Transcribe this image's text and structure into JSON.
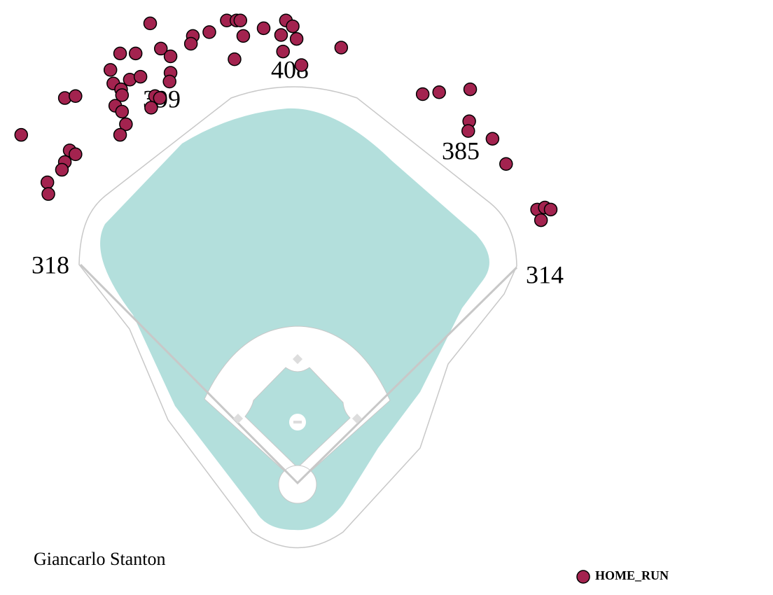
{
  "chart_data": {
    "type": "scatter",
    "title": "Giancarlo Stanton",
    "fence_distances": [
      318,
      399,
      408,
      385,
      314
    ],
    "xlim": [
      -300,
      300
    ],
    "ylim": [
      -60,
      500
    ],
    "series": [
      {
        "name": "HOME_RUN",
        "color": "#a3234f",
        "x": [
          -152,
          -108,
          -91,
          -110,
          -73,
          -63,
          -59,
          -56,
          -35,
          -12,
          -5,
          -17,
          -1,
          -15,
          -65,
          4,
          45,
          -183,
          -167,
          -141,
          -131,
          -193,
          -173,
          -162,
          -131,
          -132,
          -190,
          -182,
          -181,
          -147,
          -142,
          -240,
          -229,
          -188,
          -181,
          -151,
          -177,
          -183,
          -285,
          -235,
          -229,
          -240,
          -243,
          -258,
          -257,
          129,
          146,
          178,
          177,
          176,
          201,
          215,
          247,
          255,
          261,
          251
        ],
        "y": [
          474,
          461,
          465,
          453,
          477,
          477,
          477,
          461,
          469,
          477,
          471,
          462,
          458,
          445,
          437,
          431,
          449,
          443,
          443,
          448,
          440,
          426,
          416,
          419,
          423,
          414,
          412,
          406,
          400,
          399,
          397,
          397,
          399,
          389,
          383,
          387,
          370,
          359,
          359,
          343,
          339,
          331,
          323,
          310,
          298,
          401,
          403,
          406,
          373,
          363,
          355,
          329,
          282,
          284,
          282,
          271
        ]
      }
    ]
  }
}
